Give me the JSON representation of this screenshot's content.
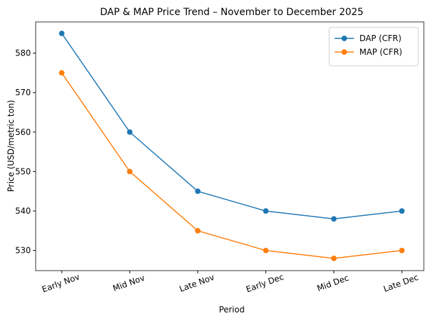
{
  "chart_data": {
    "type": "line",
    "title": "DAP & MAP Price Trend – November to December 2025",
    "x_label": "Period",
    "y_label": "Price (USD/metric ton)",
    "categories": [
      "Early Nov",
      "Mid Nov",
      "Late Nov",
      "Early Dec",
      "Mid Dec",
      "Late Dec"
    ],
    "series": [
      {
        "name": "DAP (CFR)",
        "color": "#1f77b4",
        "values": [
          585,
          560,
          545,
          540,
          538,
          540
        ]
      },
      {
        "name": "MAP (CFR)",
        "color": "#ff7f0e",
        "values": [
          575,
          550,
          535,
          530,
          528,
          530
        ]
      }
    ],
    "ylim": [
      524.9,
      587.9
    ],
    "yticks": [
      530,
      540,
      550,
      560,
      570,
      580
    ],
    "grid": false,
    "legend": "upper right"
  }
}
